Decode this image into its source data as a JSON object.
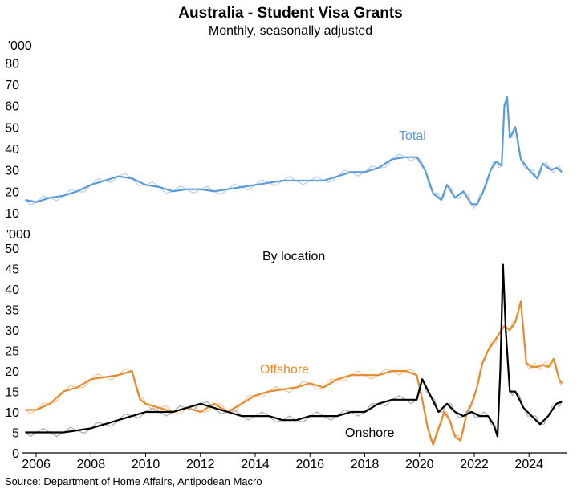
{
  "chart_data": {
    "title": "Australia - Student Visa Grants",
    "subtitle": "Monthly, seasonally adjusted",
    "source": "Source: Department of Home Affairs, Antipodean Macro",
    "x_ticks": [
      "2006",
      "2008",
      "2010",
      "2012",
      "2014",
      "2016",
      "2018",
      "2020",
      "2022",
      "2024"
    ],
    "x_range": [
      2005.5,
      2025.4
    ],
    "panels": [
      {
        "type": "line",
        "unit_label": "'000",
        "ylim": [
          10,
          85
        ],
        "y_ticks": [
          10,
          20,
          30,
          40,
          50,
          60,
          70,
          80
        ],
        "series": [
          {
            "name": "Total",
            "label": "Total",
            "color": "#5b9bd5",
            "raw_color": "#b5cfe9",
            "x": [
              2005.6,
              2006.0,
              2006.5,
              2007.0,
              2007.5,
              2008.0,
              2008.5,
              2009.0,
              2009.5,
              2010.0,
              2010.5,
              2011.0,
              2011.5,
              2012.0,
              2012.5,
              2013.0,
              2013.5,
              2014.0,
              2014.5,
              2015.0,
              2015.5,
              2016.0,
              2016.5,
              2017.0,
              2017.5,
              2018.0,
              2018.5,
              2019.0,
              2019.5,
              2019.9,
              2020.2,
              2020.5,
              2020.8,
              2021.0,
              2021.3,
              2021.6,
              2021.9,
              2022.1,
              2022.3,
              2022.6,
              2022.8,
              2023.0,
              2023.1,
              2023.2,
              2023.3,
              2023.5,
              2023.7,
              2024.0,
              2024.3,
              2024.5,
              2024.8,
              2025.0,
              2025.2
            ],
            "values": [
              16,
              15,
              17,
              18,
              20,
              23,
              25,
              27,
              26,
              23,
              22,
              20,
              21,
              21,
              20,
              21,
              22,
              23,
              24,
              25,
              25,
              25,
              25,
              27,
              29,
              29,
              31,
              35,
              36,
              36,
              30,
              19,
              16,
              23,
              17,
              20,
              14,
              14,
              19,
              30,
              34,
              32,
              60,
              64,
              45,
              50,
              35,
              30,
              26,
              33,
              30,
              31,
              29
            ]
          }
        ]
      },
      {
        "type": "line",
        "unit_label": "'000",
        "annotation": "By location",
        "ylim": [
          0,
          52
        ],
        "y_ticks": [
          0,
          5,
          10,
          15,
          20,
          25,
          30,
          35,
          40,
          45,
          50
        ],
        "series": [
          {
            "name": "Offshore",
            "label": "Offshore",
            "color": "#e58a2e",
            "raw_color": "#f5c79a",
            "x": [
              2005.6,
              2006.0,
              2006.5,
              2007.0,
              2007.5,
              2008.0,
              2008.5,
              2009.0,
              2009.5,
              2009.8,
              2010.0,
              2010.5,
              2011.0,
              2011.5,
              2012.0,
              2012.5,
              2013.0,
              2013.5,
              2014.0,
              2014.5,
              2015.0,
              2015.5,
              2016.0,
              2016.5,
              2017.0,
              2017.5,
              2018.0,
              2018.5,
              2019.0,
              2019.5,
              2019.9,
              2020.1,
              2020.3,
              2020.5,
              2020.7,
              2020.9,
              2021.1,
              2021.3,
              2021.5,
              2021.7,
              2021.9,
              2022.1,
              2022.3,
              2022.5,
              2022.7,
              2022.9,
              2023.1,
              2023.3,
              2023.5,
              2023.7,
              2023.9,
              2024.1,
              2024.3,
              2024.5,
              2024.7,
              2024.9,
              2025.1,
              2025.2
            ],
            "values": [
              10.5,
              10.5,
              12,
              15,
              16,
              18,
              18.5,
              19,
              20,
              13,
              12,
              11,
              10,
              11,
              10,
              12,
              10,
              12,
              14,
              15,
              15.5,
              16,
              17,
              16,
              18,
              19,
              19,
              19,
              20,
              20,
              19,
              13,
              6,
              2,
              6,
              10,
              8,
              4,
              3,
              9,
              12,
              16,
              22,
              25,
              27,
              29,
              31,
              30,
              32,
              37,
              22,
              21,
              21,
              21.5,
              21,
              23,
              18,
              17
            ]
          },
          {
            "name": "Onshore",
            "label": "Onshore",
            "color": "#000000",
            "raw_color": "#a9a9a9",
            "x": [
              2005.6,
              2006.0,
              2006.5,
              2007.0,
              2007.5,
              2008.0,
              2008.5,
              2009.0,
              2009.5,
              2010.0,
              2010.5,
              2011.0,
              2011.5,
              2012.0,
              2012.5,
              2013.0,
              2013.5,
              2014.0,
              2014.5,
              2015.0,
              2015.5,
              2016.0,
              2016.5,
              2017.0,
              2017.5,
              2018.0,
              2018.5,
              2019.0,
              2019.5,
              2019.9,
              2020.1,
              2020.4,
              2020.7,
              2021.0,
              2021.3,
              2021.6,
              2021.9,
              2022.2,
              2022.5,
              2022.7,
              2022.85,
              2022.95,
              2023.05,
              2023.15,
              2023.3,
              2023.5,
              2023.8,
              2024.1,
              2024.4,
              2024.7,
              2025.0,
              2025.2
            ],
            "values": [
              5,
              5,
              5,
              5,
              5.5,
              6,
              7,
              8,
              9,
              10,
              10,
              10,
              11,
              12,
              11,
              10,
              9,
              9,
              9,
              8,
              8,
              9,
              9,
              9,
              10,
              10,
              12,
              13,
              13,
              13,
              18,
              14,
              10,
              12,
              10,
              9,
              10,
              9,
              9,
              7,
              4,
              20,
              46,
              30,
              15,
              15,
              11,
              9,
              7,
              9,
              12,
              12.5
            ]
          }
        ]
      }
    ]
  }
}
